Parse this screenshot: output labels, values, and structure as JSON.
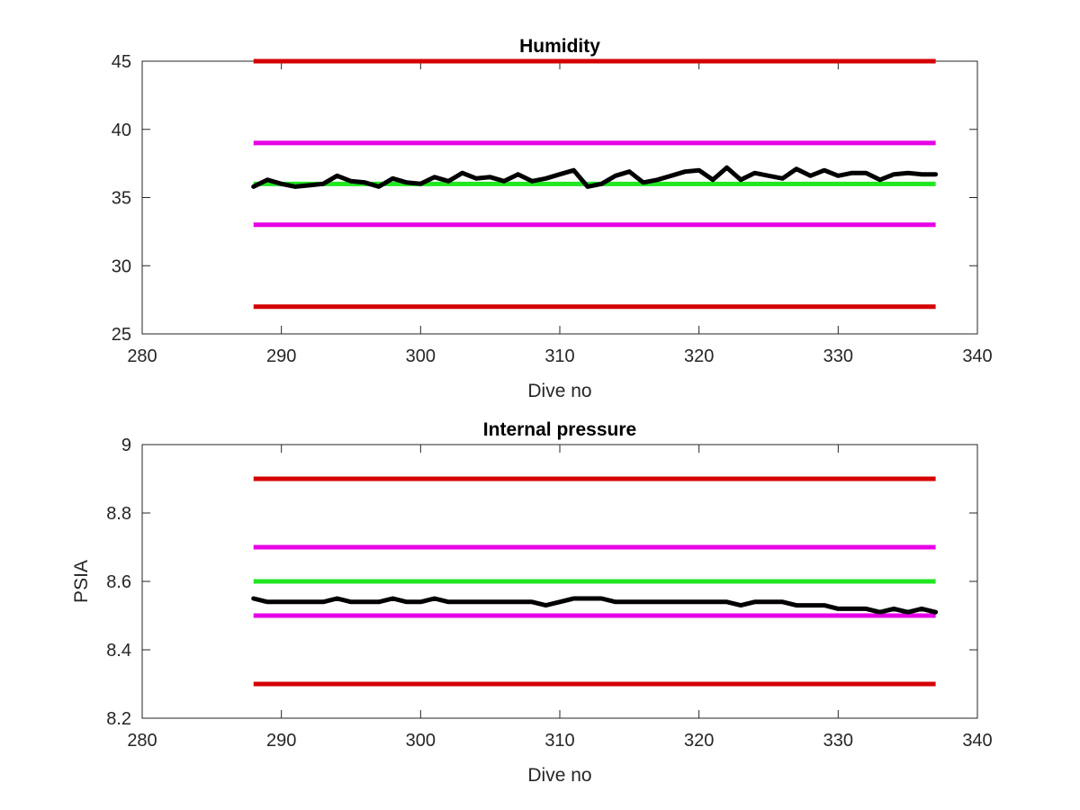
{
  "chart_data": [
    {
      "type": "line",
      "title": "Humidity",
      "xlabel": "Dive no",
      "ylabel": "",
      "xlim": [
        280,
        340
      ],
      "ylim": [
        25,
        45
      ],
      "xticks": [
        280,
        290,
        300,
        310,
        320,
        330,
        340
      ],
      "yticks": [
        25,
        30,
        35,
        40,
        45
      ],
      "grid": false,
      "legend": "none",
      "threshold_lines": [
        {
          "y": 45,
          "x_range": [
            288,
            337
          ],
          "color": "#d40000"
        },
        {
          "y": 39,
          "x_range": [
            288,
            337
          ],
          "color": "#e600e6"
        },
        {
          "y": 36,
          "x_range": [
            288,
            337
          ],
          "color": "#21e621"
        },
        {
          "y": 33,
          "x_range": [
            288,
            337
          ],
          "color": "#e600e6"
        },
        {
          "y": 27,
          "x_range": [
            288,
            337
          ],
          "color": "#d40000"
        }
      ],
      "series": [
        {
          "color": "#000000",
          "x": [
            288,
            289,
            290,
            291,
            292,
            293,
            294,
            295,
            296,
            297,
            298,
            299,
            300,
            301,
            302,
            303,
            304,
            305,
            306,
            307,
            308,
            309,
            310,
            311,
            312,
            313,
            314,
            315,
            316,
            317,
            318,
            319,
            320,
            321,
            322,
            323,
            324,
            325,
            326,
            327,
            328,
            329,
            330,
            331,
            332,
            333,
            334,
            335,
            336,
            337
          ],
          "y": [
            35.8,
            36.3,
            36.0,
            35.8,
            35.9,
            36.0,
            36.6,
            36.2,
            36.1,
            35.8,
            36.4,
            36.1,
            36.0,
            36.5,
            36.2,
            36.8,
            36.4,
            36.5,
            36.2,
            36.7,
            36.2,
            36.4,
            36.7,
            37.0,
            35.8,
            36.0,
            36.6,
            36.9,
            36.1,
            36.3,
            36.6,
            36.9,
            37.0,
            36.3,
            37.2,
            36.3,
            36.8,
            36.6,
            36.4,
            37.1,
            36.6,
            37.0,
            36.6,
            36.8,
            36.8,
            36.3,
            36.7,
            36.8,
            36.7,
            36.7
          ]
        }
      ]
    },
    {
      "type": "line",
      "title": "Internal pressure",
      "xlabel": "Dive no",
      "ylabel": "PSIA",
      "xlim": [
        280,
        340
      ],
      "ylim": [
        8.2,
        9.0
      ],
      "xticks": [
        280,
        290,
        300,
        310,
        320,
        330,
        340
      ],
      "yticks": [
        8.2,
        8.4,
        8.6,
        8.8,
        9
      ],
      "ytick_labels": [
        "8.2",
        "8.4",
        "8.6",
        "8.8",
        "9"
      ],
      "grid": false,
      "legend": "none",
      "threshold_lines": [
        {
          "y": 8.9,
          "x_range": [
            288,
            337
          ],
          "color": "#d40000"
        },
        {
          "y": 8.7,
          "x_range": [
            288,
            337
          ],
          "color": "#e600e6"
        },
        {
          "y": 8.6,
          "x_range": [
            288,
            337
          ],
          "color": "#21e621"
        },
        {
          "y": 8.5,
          "x_range": [
            288,
            337
          ],
          "color": "#e600e6"
        },
        {
          "y": 8.3,
          "x_range": [
            288,
            337
          ],
          "color": "#d40000"
        }
      ],
      "series": [
        {
          "color": "#000000",
          "x": [
            288,
            289,
            290,
            291,
            292,
            293,
            294,
            295,
            296,
            297,
            298,
            299,
            300,
            301,
            302,
            303,
            304,
            305,
            306,
            307,
            308,
            309,
            310,
            311,
            312,
            313,
            314,
            315,
            316,
            317,
            318,
            319,
            320,
            321,
            322,
            323,
            324,
            325,
            326,
            327,
            328,
            329,
            330,
            331,
            332,
            333,
            334,
            335,
            336,
            337
          ],
          "y": [
            8.55,
            8.54,
            8.54,
            8.54,
            8.54,
            8.54,
            8.55,
            8.54,
            8.54,
            8.54,
            8.55,
            8.54,
            8.54,
            8.55,
            8.54,
            8.54,
            8.54,
            8.54,
            8.54,
            8.54,
            8.54,
            8.53,
            8.54,
            8.55,
            8.55,
            8.55,
            8.54,
            8.54,
            8.54,
            8.54,
            8.54,
            8.54,
            8.54,
            8.54,
            8.54,
            8.53,
            8.54,
            8.54,
            8.54,
            8.53,
            8.53,
            8.53,
            8.52,
            8.52,
            8.52,
            8.51,
            8.52,
            8.51,
            8.52,
            8.51
          ]
        }
      ]
    }
  ]
}
